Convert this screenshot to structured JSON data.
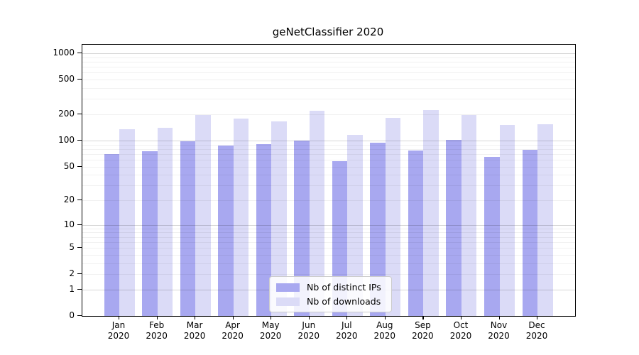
{
  "title": "geNetClassifier 2020",
  "colors": {
    "ips_bar": "#a8a8f0",
    "downloads_bar": "#dbdbf7",
    "axis": "#000000",
    "background": "#ffffff"
  },
  "legend": {
    "items": [
      {
        "label": "Nb of distinct IPs",
        "color_key": "ips_bar"
      },
      {
        "label": "Nb of downloads",
        "color_key": "downloads_bar"
      }
    ]
  },
  "chart_data": {
    "type": "bar",
    "title": "geNetClassifier 2020",
    "xlabel": "",
    "ylabel": "",
    "scale": "log10(value+1)",
    "grid": "horizontal log minor + major, drawn over bars",
    "legend_position": "bottom-center inside plot",
    "categories": [
      "Jan 2020",
      "Feb 2020",
      "Mar 2020",
      "Apr 2020",
      "May 2020",
      "Jun 2020",
      "Jul 2020",
      "Aug 2020",
      "Sep 2020",
      "Oct 2020",
      "Nov 2020",
      "Dec 2020"
    ],
    "x_tick_months": [
      "Jan",
      "Feb",
      "Mar",
      "Apr",
      "May",
      "Jun",
      "Jul",
      "Aug",
      "Sep",
      "Oct",
      "Nov",
      "Dec"
    ],
    "x_tick_year": "2020",
    "series": [
      {
        "name": "Nb of distinct IPs",
        "values": [
          70,
          75,
          97,
          87,
          90,
          100,
          58,
          95,
          77,
          101,
          65,
          78
        ]
      },
      {
        "name": "Nb of downloads",
        "values": [
          134,
          140,
          195,
          178,
          165,
          220,
          117,
          182,
          222,
          195,
          152,
          155
        ]
      }
    ],
    "y_ticks": [
      0,
      1,
      2,
      5,
      10,
      20,
      50,
      100,
      200,
      500,
      1000
    ],
    "ylim": [
      0,
      1250
    ]
  }
}
